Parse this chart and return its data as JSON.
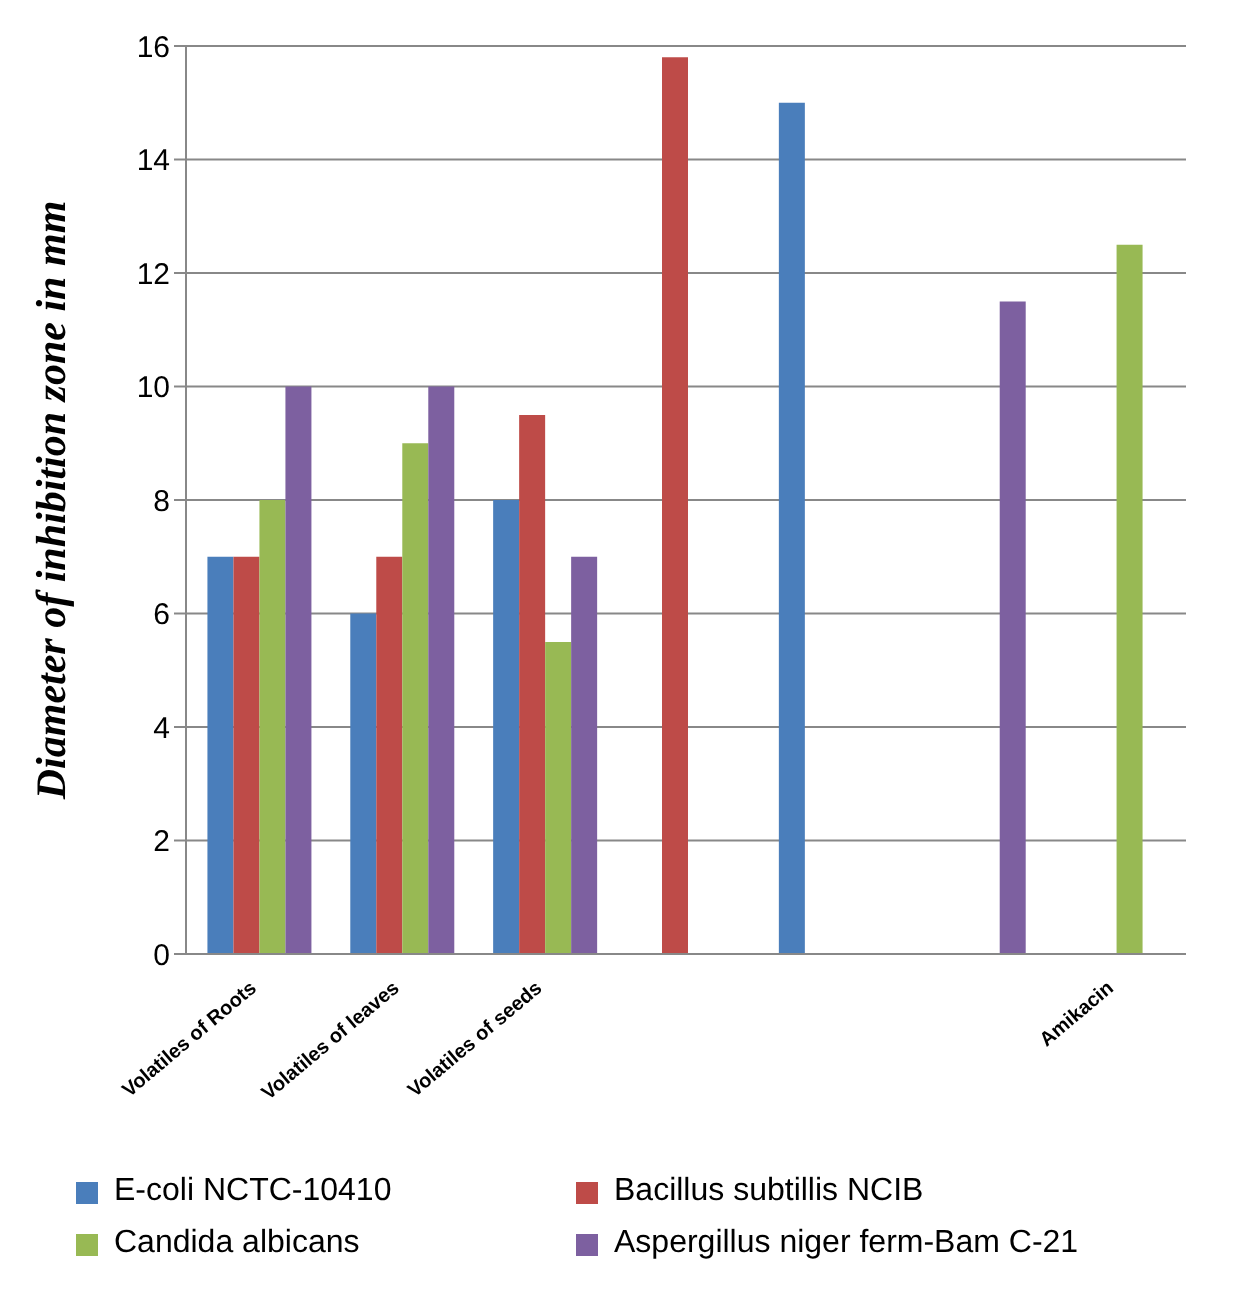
{
  "chart_data": {
    "type": "bar",
    "ylabel": "Diameter of inhibition zone in mm",
    "categories": [
      "Volatiles of Roots",
      "Volatiles of leaves",
      "Volatiles of seeds",
      null,
      null,
      null,
      "Amikacin"
    ],
    "series": [
      {
        "name": "E-coli NCTC-10410",
        "color": "#4a7ebb",
        "values": [
          7,
          6,
          8,
          null,
          15,
          null,
          null
        ]
      },
      {
        "name": "Bacillus subtillis NCIB",
        "color": "#be4b48",
        "values": [
          7,
          7,
          9.5,
          15.8,
          null,
          null,
          null
        ]
      },
      {
        "name": "Candida albicans",
        "color": "#98b954",
        "values": [
          8,
          9,
          5.5,
          null,
          null,
          null,
          12.5
        ]
      },
      {
        "name": "Aspergillus niger ferm-Bam C-21",
        "color": "#7d60a0",
        "values": [
          10,
          10,
          7,
          null,
          null,
          11.5,
          null
        ]
      }
    ],
    "ylim": [
      0,
      16
    ],
    "yticks": [
      0,
      2,
      4,
      6,
      8,
      10,
      12,
      14,
      16
    ],
    "grid": "y",
    "legend": "bottom"
  }
}
